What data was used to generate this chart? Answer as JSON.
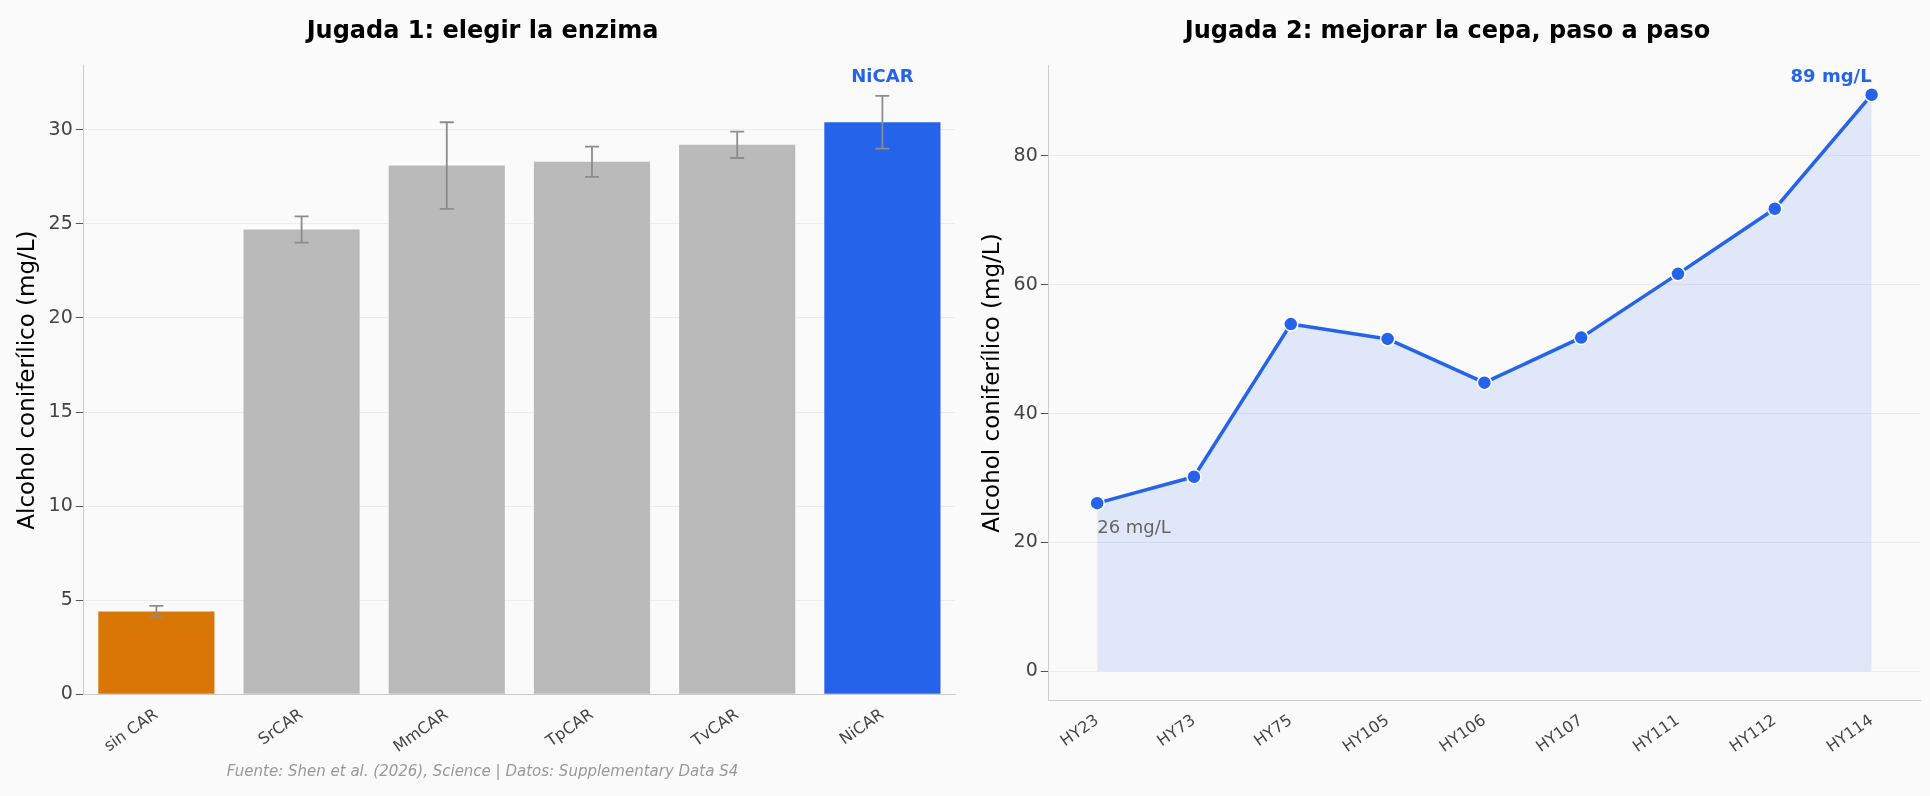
{
  "chart_data": [
    {
      "type": "bar",
      "title": "Jugada 1: elegir la enzima",
      "ylabel": "Alcohol coniferílico (mg/L)",
      "categories": [
        "sin CAR",
        "SrCAR",
        "MmCAR",
        "TpCAR",
        "TvCAR",
        "NiCAR"
      ],
      "values": [
        4.4,
        24.7,
        28.1,
        28.3,
        29.2,
        30.4
      ],
      "errors": [
        0.3,
        0.7,
        2.3,
        0.8,
        0.7,
        1.4
      ],
      "colors": [
        "#d97706",
        "#bababa",
        "#bababa",
        "#bababa",
        "#bababa",
        "#2563eb"
      ],
      "ylim": [
        0,
        33.4
      ],
      "yticks": [
        0,
        5,
        10,
        15,
        20,
        25,
        30
      ],
      "grid": "y",
      "legend": false,
      "annotations": [
        {
          "text": "NiCAR",
          "x": "NiCAR",
          "y": 31.9
        },
        "Fuente: Shen et al. (2026), Science | Datos: Supplementary Data S4"
      ]
    },
    {
      "type": "area",
      "title": "Jugada 2: mejorar la cepa, paso a paso",
      "ylabel": "Alcohol coniferílico (mg/L)",
      "categories": [
        "HY23",
        "HY73",
        "HY75",
        "HY105",
        "HY106",
        "HY107",
        "HY111",
        "HY112",
        "HY114"
      ],
      "series": [
        {
          "color": "#2563eb",
          "values": [
            26.1,
            30.2,
            53.9,
            51.6,
            44.8,
            51.8,
            61.7,
            71.8,
            89.5
          ]
        }
      ],
      "ylim": [
        -4.5,
        94
      ],
      "yticks": [
        0,
        20,
        40,
        60,
        80
      ],
      "grid": "y",
      "legend": false,
      "marker": "circle",
      "annotations": [
        {
          "text": "26 mg/L",
          "x": "HY23",
          "y": 26.1
        },
        {
          "text": "89 mg/L",
          "x": "HY114",
          "y": 89.5
        }
      ]
    }
  ]
}
